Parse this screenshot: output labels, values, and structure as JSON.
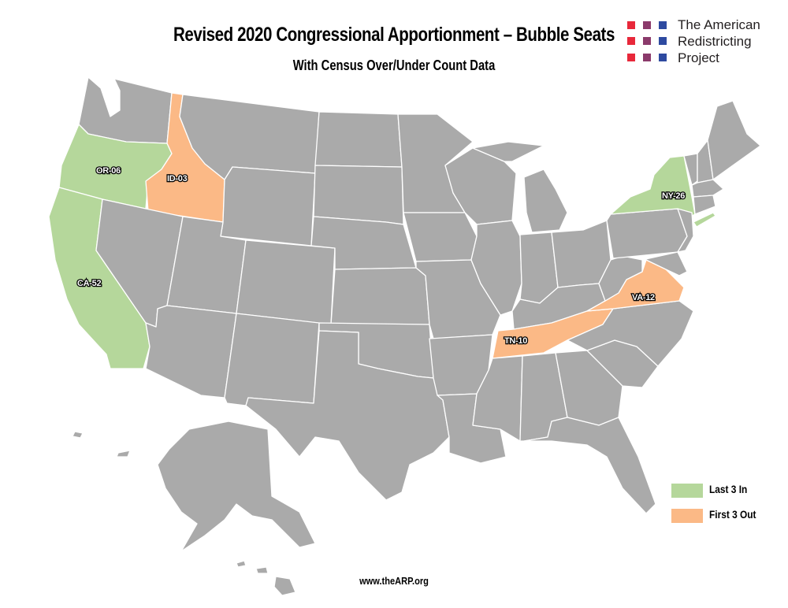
{
  "title": "Revised 2020 Congressional Apportionment – Bubble Seats",
  "subtitle": "With Census Over/Under Count Data",
  "logo": {
    "lines": [
      "The American",
      "Redistricting",
      "Project"
    ],
    "colors": [
      "#e8283a",
      "#8b3a6b",
      "#2e4aa0"
    ]
  },
  "colors": {
    "default_state": "#aaaaaa",
    "last_in": "#b5d79b",
    "first_out": "#fbb986",
    "border": "#ffffff"
  },
  "highlighted": {
    "OR": {
      "label": "OR-06",
      "category": "last_in"
    },
    "CA": {
      "label": "CA-52",
      "category": "last_in"
    },
    "NY": {
      "label": "NY-26",
      "category": "last_in"
    },
    "ID": {
      "label": "ID-03",
      "category": "first_out"
    },
    "TN": {
      "label": "TN-10",
      "category": "first_out"
    },
    "VA": {
      "label": "VA-12",
      "category": "first_out"
    }
  },
  "legend": [
    {
      "label": "Last 3 In",
      "category": "last_in"
    },
    {
      "label": "First 3 Out",
      "category": "first_out"
    }
  ],
  "footer": "www.theARP.org"
}
